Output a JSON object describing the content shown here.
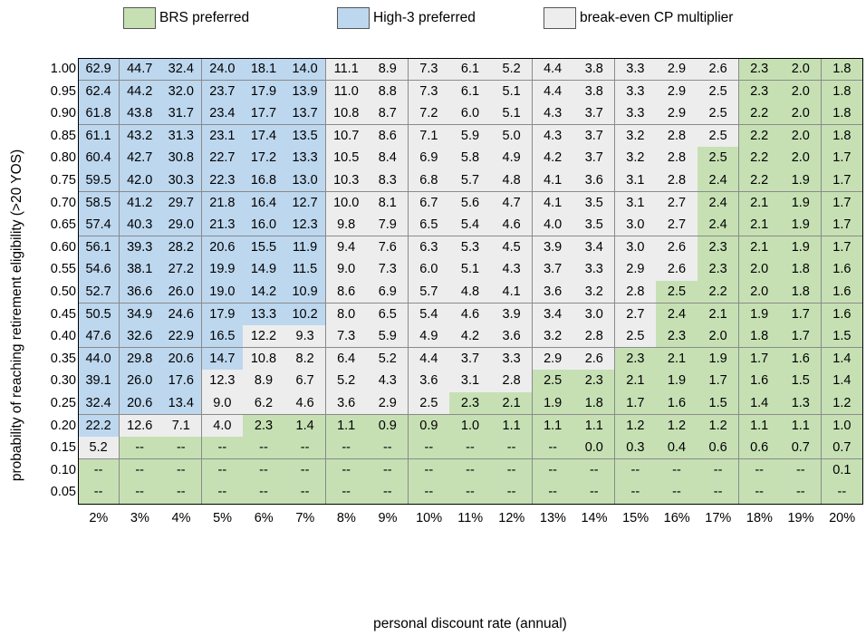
{
  "chart_data": {
    "type": "heatmap",
    "title": "",
    "xlabel": "personal discount rate (annual)",
    "ylabel": "probability of reaching retirement eligibility (>20 YOS)",
    "x": [
      "2%",
      "3%",
      "4%",
      "5%",
      "6%",
      "7%",
      "8%",
      "9%",
      "10%",
      "11%",
      "12%",
      "13%",
      "14%",
      "15%",
      "16%",
      "17%",
      "18%",
      "19%",
      "20%"
    ],
    "y": [
      "1.00",
      "0.95",
      "0.90",
      "0.85",
      "0.80",
      "0.75",
      "0.70",
      "0.65",
      "0.60",
      "0.55",
      "0.50",
      "0.45",
      "0.40",
      "0.35",
      "0.30",
      "0.25",
      "0.20",
      "0.15",
      "0.10",
      "0.05"
    ],
    "legend": [
      {
        "key": "B",
        "label": "BRS preferred",
        "color": "#c6e0b4"
      },
      {
        "key": "H",
        "label": "High-3 preferred",
        "color": "#bdd7ee"
      },
      {
        "key": "N",
        "label": "break-even CP multiplier",
        "color": "#ededed"
      }
    ],
    "values": [
      [
        "62.9",
        "44.7",
        "32.4",
        "24.0",
        "18.1",
        "14.0",
        "11.1",
        "8.9",
        "7.3",
        "6.1",
        "5.2",
        "4.4",
        "3.8",
        "3.3",
        "2.9",
        "2.6",
        "2.3",
        "2.0",
        "1.8"
      ],
      [
        "62.4",
        "44.2",
        "32.0",
        "23.7",
        "17.9",
        "13.9",
        "11.0",
        "8.8",
        "7.3",
        "6.1",
        "5.1",
        "4.4",
        "3.8",
        "3.3",
        "2.9",
        "2.5",
        "2.3",
        "2.0",
        "1.8"
      ],
      [
        "61.8",
        "43.8",
        "31.7",
        "23.4",
        "17.7",
        "13.7",
        "10.8",
        "8.7",
        "7.2",
        "6.0",
        "5.1",
        "4.3",
        "3.7",
        "3.3",
        "2.9",
        "2.5",
        "2.2",
        "2.0",
        "1.8"
      ],
      [
        "61.1",
        "43.2",
        "31.3",
        "23.1",
        "17.4",
        "13.5",
        "10.7",
        "8.6",
        "7.1",
        "5.9",
        "5.0",
        "4.3",
        "3.7",
        "3.2",
        "2.8",
        "2.5",
        "2.2",
        "2.0",
        "1.8"
      ],
      [
        "60.4",
        "42.7",
        "30.8",
        "22.7",
        "17.2",
        "13.3",
        "10.5",
        "8.4",
        "6.9",
        "5.8",
        "4.9",
        "4.2",
        "3.7",
        "3.2",
        "2.8",
        "2.5",
        "2.2",
        "2.0",
        "1.7"
      ],
      [
        "59.5",
        "42.0",
        "30.3",
        "22.3",
        "16.8",
        "13.0",
        "10.3",
        "8.3",
        "6.8",
        "5.7",
        "4.8",
        "4.1",
        "3.6",
        "3.1",
        "2.8",
        "2.4",
        "2.2",
        "1.9",
        "1.7"
      ],
      [
        "58.5",
        "41.2",
        "29.7",
        "21.8",
        "16.4",
        "12.7",
        "10.0",
        "8.1",
        "6.7",
        "5.6",
        "4.7",
        "4.1",
        "3.5",
        "3.1",
        "2.7",
        "2.4",
        "2.1",
        "1.9",
        "1.7"
      ],
      [
        "57.4",
        "40.3",
        "29.0",
        "21.3",
        "16.0",
        "12.3",
        "9.8",
        "7.9",
        "6.5",
        "5.4",
        "4.6",
        "4.0",
        "3.5",
        "3.0",
        "2.7",
        "2.4",
        "2.1",
        "1.9",
        "1.7"
      ],
      [
        "56.1",
        "39.3",
        "28.2",
        "20.6",
        "15.5",
        "11.9",
        "9.4",
        "7.6",
        "6.3",
        "5.3",
        "4.5",
        "3.9",
        "3.4",
        "3.0",
        "2.6",
        "2.3",
        "2.1",
        "1.9",
        "1.7"
      ],
      [
        "54.6",
        "38.1",
        "27.2",
        "19.9",
        "14.9",
        "11.5",
        "9.0",
        "7.3",
        "6.0",
        "5.1",
        "4.3",
        "3.7",
        "3.3",
        "2.9",
        "2.6",
        "2.3",
        "2.0",
        "1.8",
        "1.6"
      ],
      [
        "52.7",
        "36.6",
        "26.0",
        "19.0",
        "14.2",
        "10.9",
        "8.6",
        "6.9",
        "5.7",
        "4.8",
        "4.1",
        "3.6",
        "3.2",
        "2.8",
        "2.5",
        "2.2",
        "2.0",
        "1.8",
        "1.6"
      ],
      [
        "50.5",
        "34.9",
        "24.6",
        "17.9",
        "13.3",
        "10.2",
        "8.0",
        "6.5",
        "5.4",
        "4.6",
        "3.9",
        "3.4",
        "3.0",
        "2.7",
        "2.4",
        "2.1",
        "1.9",
        "1.7",
        "1.6"
      ],
      [
        "47.6",
        "32.6",
        "22.9",
        "16.5",
        "12.2",
        "9.3",
        "7.3",
        "5.9",
        "4.9",
        "4.2",
        "3.6",
        "3.2",
        "2.8",
        "2.5",
        "2.3",
        "2.0",
        "1.8",
        "1.7",
        "1.5"
      ],
      [
        "44.0",
        "29.8",
        "20.6",
        "14.7",
        "10.8",
        "8.2",
        "6.4",
        "5.2",
        "4.4",
        "3.7",
        "3.3",
        "2.9",
        "2.6",
        "2.3",
        "2.1",
        "1.9",
        "1.7",
        "1.6",
        "1.4"
      ],
      [
        "39.1",
        "26.0",
        "17.6",
        "12.3",
        "8.9",
        "6.7",
        "5.2",
        "4.3",
        "3.6",
        "3.1",
        "2.8",
        "2.5",
        "2.3",
        "2.1",
        "1.9",
        "1.7",
        "1.6",
        "1.5",
        "1.4"
      ],
      [
        "32.4",
        "20.6",
        "13.4",
        "9.0",
        "6.2",
        "4.6",
        "3.6",
        "2.9",
        "2.5",
        "2.3",
        "2.1",
        "1.9",
        "1.8",
        "1.7",
        "1.6",
        "1.5",
        "1.4",
        "1.3",
        "1.2"
      ],
      [
        "22.2",
        "12.6",
        "7.1",
        "4.0",
        "2.3",
        "1.4",
        "1.1",
        "0.9",
        "0.9",
        "1.0",
        "1.1",
        "1.1",
        "1.1",
        "1.2",
        "1.2",
        "1.2",
        "1.1",
        "1.1",
        "1.0"
      ],
      [
        "5.2",
        "--",
        "--",
        "--",
        "--",
        "--",
        "--",
        "--",
        "--",
        "--",
        "--",
        "--",
        "0.0",
        "0.3",
        "0.4",
        "0.6",
        "0.6",
        "0.7",
        "0.7"
      ],
      [
        "--",
        "--",
        "--",
        "--",
        "--",
        "--",
        "--",
        "--",
        "--",
        "--",
        "--",
        "--",
        "--",
        "--",
        "--",
        "--",
        "--",
        "--",
        "0.1"
      ],
      [
        "--",
        "--",
        "--",
        "--",
        "--",
        "--",
        "--",
        "--",
        "--",
        "--",
        "--",
        "--",
        "--",
        "--",
        "--",
        "--",
        "--",
        "--",
        "--"
      ]
    ],
    "categories": [
      "HHHHHHNNNNNNNNNNBBB",
      "HHHHHHNNNNNNNNNNBBB",
      "HHHHHHNNNNNNNNNNBBB",
      "HHHHHHNNNNNNNNNNBBB",
      "HHHHHHNNNNNNNNNBBBB",
      "HHHHHHNNNNNNNNNBBBB",
      "HHHHHHNNNNNNNNNBBBB",
      "HHHHHHNNNNNNNNNBBBB",
      "HHHHHHNNNNNNNNNBBBB",
      "HHHHHHNNNNNNNNNBBBB",
      "HHHHHHNNNNNNNNBBBBB",
      "HHHHHHNNNNNNNNBBBBB",
      "HHHHNNNNNNNNNNBBBBB",
      "HHHHNNNNNNNNNBBBBBB",
      "HHHNNNNNNNNBBBBBBBB",
      "HHHNNNNNNBBBBBBBBBB",
      "HNNNBBBBBBBBBBBBBBB",
      "NBBBBBBBBBBBBBBBBBB",
      "BBBBBBBBBBBBBBBBBBB",
      "BBBBBBBBBBBBBBBBBBB"
    ]
  }
}
